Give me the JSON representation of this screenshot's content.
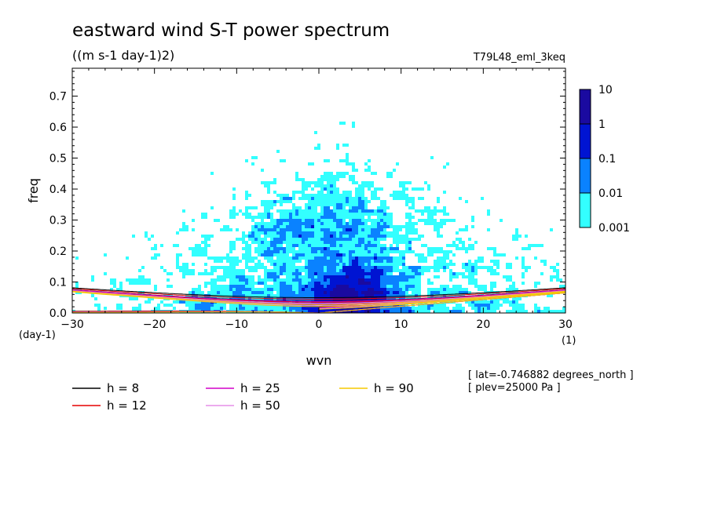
{
  "chart_data": {
    "type": "heatmap",
    "title": "eastward wind S-T power spectrum",
    "subtitle": "((m s-1 day-1)2)",
    "run_label": "T79L48_eml_3keq",
    "xlabel": "wvn",
    "ylabel": "freq",
    "x_unit": "(1)",
    "y_unit": "(day-1)",
    "xlim": [
      -30,
      30
    ],
    "ylim": [
      0,
      0.79
    ],
    "xticks": [
      -30,
      -20,
      -10,
      0,
      10,
      20,
      30
    ],
    "yticks": [
      0.0,
      0.1,
      0.2,
      0.3,
      0.4,
      0.5,
      0.6,
      0.7
    ],
    "ytick_labels": [
      "0.0",
      "0.1",
      "0.2",
      "0.3",
      "0.4",
      "0.5",
      "0.6",
      "0.7"
    ],
    "colorbar": {
      "levels": [
        "0.001",
        "0.01",
        "0.1",
        "1",
        "10"
      ],
      "colors": [
        "#33ffff",
        "#0a82ff",
        "#0014d2",
        "#1a0aa0"
      ]
    },
    "dispersion_curves": [
      {
        "label": "h = 8",
        "h": 8,
        "color": "#000000"
      },
      {
        "label": "h = 12",
        "h": 12,
        "color": "#e60000"
      },
      {
        "label": "h = 25",
        "h": 25,
        "color": "#d200c8"
      },
      {
        "label": "h = 50",
        "h": 50,
        "color": "#e58fe8"
      },
      {
        "label": "h = 90",
        "h": 90,
        "color": "#f5c800"
      }
    ],
    "annotations": [
      "[ lat=-0.746882 degrees_north ]",
      "[ plev=25000 Pa ]"
    ]
  }
}
